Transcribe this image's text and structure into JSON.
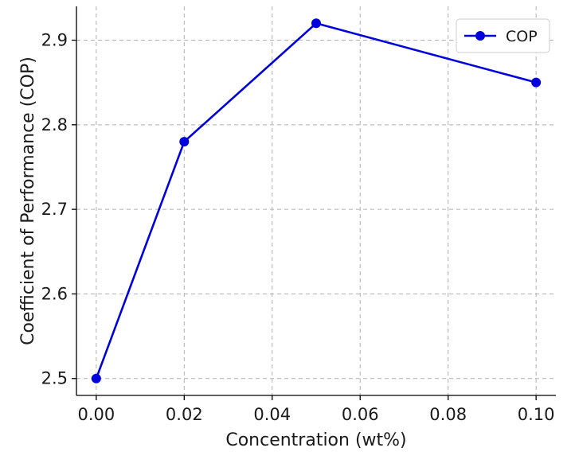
{
  "chart_data": {
    "type": "line",
    "title": "",
    "xlabel": "Concentration (wt%)",
    "ylabel": "Coefficient of Performance (COP)",
    "x": [
      0.0,
      0.02,
      0.05,
      0.1
    ],
    "series": [
      {
        "name": "COP",
        "values": [
          2.5,
          2.78,
          2.92,
          2.85
        ],
        "color": "#0000dd"
      }
    ],
    "xlim": [
      -0.0045,
      0.1045
    ],
    "ylim": [
      2.48,
      2.94
    ],
    "xticks": [
      0.0,
      0.02,
      0.04,
      0.06,
      0.08,
      0.1
    ],
    "xtick_labels": [
      "0.00",
      "0.02",
      "0.04",
      "0.06",
      "0.08",
      "0.10"
    ],
    "yticks": [
      2.5,
      2.6,
      2.7,
      2.8,
      2.9
    ],
    "ytick_labels": [
      "2.5",
      "2.6",
      "2.7",
      "2.8",
      "2.9"
    ],
    "grid": true,
    "legend_position": "top-right"
  }
}
